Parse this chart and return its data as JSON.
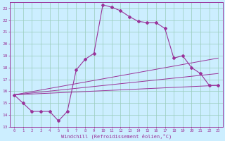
{
  "background_color": "#cceeff",
  "grid_color": "#99ccbb",
  "line_color": "#993399",
  "xlabel": "Windchill (Refroidissement éolien,°C)",
  "xlim": [
    -0.5,
    23.5
  ],
  "ylim": [
    13,
    23.5
  ],
  "xticks": [
    0,
    1,
    2,
    3,
    4,
    5,
    6,
    7,
    8,
    9,
    10,
    11,
    12,
    13,
    14,
    15,
    16,
    17,
    18,
    19,
    20,
    21,
    22,
    23
  ],
  "yticks": [
    13,
    14,
    15,
    16,
    17,
    18,
    19,
    20,
    21,
    22,
    23
  ],
  "main_x": [
    0,
    1,
    2,
    3,
    4,
    5,
    6,
    7,
    8,
    9,
    10,
    11,
    12,
    13,
    14,
    15,
    16,
    17,
    18,
    19,
    20,
    21,
    22,
    23
  ],
  "main_y": [
    15.7,
    15.0,
    14.3,
    14.3,
    14.3,
    13.5,
    14.3,
    17.8,
    18.7,
    19.2,
    23.3,
    23.1,
    22.8,
    22.3,
    21.9,
    21.8,
    21.8,
    21.3,
    18.8,
    19.0,
    18.0,
    17.5,
    16.5,
    16.5
  ],
  "line_a": [
    [
      0,
      23
    ],
    [
      15.7,
      16.5
    ]
  ],
  "line_b": [
    [
      0,
      23
    ],
    [
      15.7,
      17.5
    ]
  ],
  "line_c": [
    [
      0,
      23
    ],
    [
      15.7,
      18.8
    ]
  ]
}
